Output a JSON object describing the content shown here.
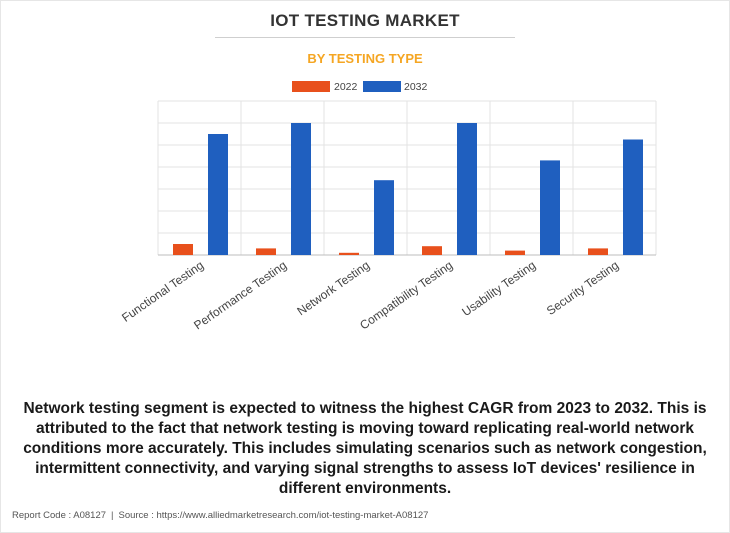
{
  "header": {
    "title": "IOT TESTING MARKET",
    "subtitle": "BY TESTING TYPE"
  },
  "chart_data": {
    "type": "bar",
    "categories": [
      "Functional Testing",
      "Performance Testing",
      "Network Testing",
      "Compatibility Testing",
      "Usability Testing",
      "Security Testing"
    ],
    "series": [
      {
        "name": "2022",
        "color": "#e8501c",
        "values": [
          5,
          3,
          1,
          4,
          2,
          3
        ]
      },
      {
        "name": "2032",
        "color": "#1f5fbf",
        "values": [
          55,
          60,
          34,
          60,
          43,
          52.5
        ]
      }
    ],
    "ylim": [
      0,
      70
    ],
    "grid": true,
    "legend": "top-center",
    "xlabel": "",
    "ylabel": ""
  },
  "description": "Network testing segment is expected to witness the highest CAGR from 2023 to 2032. This is attributed to the fact that network testing is moving toward replicating real-world network conditions more accurately. This includes simulating scenarios such as network congestion, intermittent connectivity, and varying signal strengths to assess IoT devices' resilience in different environments.",
  "footer": {
    "report_code": "Report Code : A08127",
    "separator": "|",
    "source": "Source : https://www.alliedmarketresearch.com/iot-testing-market-A08127"
  }
}
